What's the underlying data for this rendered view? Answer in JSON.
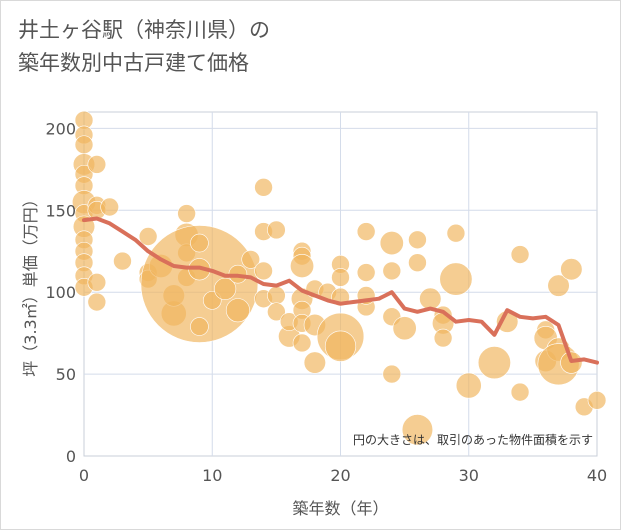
{
  "title": {
    "line1": "井土ヶ谷駅（神奈川県）の",
    "line2": "築年数別中古戸建て価格"
  },
  "chart_data": {
    "type": "scatter",
    "xlabel": "築年数（年）",
    "ylabel": "坪（3.3㎡）単価（万円）",
    "xlim": [
      0,
      40
    ],
    "ylim": [
      0,
      210
    ],
    "x_ticks": [
      "0",
      "10",
      "20",
      "30",
      "40"
    ],
    "y_ticks": [
      "0",
      "50",
      "100",
      "150",
      "200"
    ],
    "note": "円の大きさは、取引のあった物件面積を示す",
    "colors": {
      "bubble": "#f0b65e",
      "line": "#d9705a",
      "grid": "#d4dcea",
      "plot_border": "#c9cfd9"
    },
    "grid": true,
    "bubbles": [
      {
        "x": 0,
        "y": 205,
        "r": 1
      },
      {
        "x": 0,
        "y": 196,
        "r": 1
      },
      {
        "x": 0,
        "y": 190,
        "r": 1
      },
      {
        "x": 0,
        "y": 178,
        "r": 1.2
      },
      {
        "x": 0,
        "y": 172,
        "r": 1
      },
      {
        "x": 0,
        "y": 165,
        "r": 1
      },
      {
        "x": 0,
        "y": 155,
        "r": 1.3
      },
      {
        "x": 0,
        "y": 148,
        "r": 1
      },
      {
        "x": 0,
        "y": 140,
        "r": 1.2
      },
      {
        "x": 0,
        "y": 132,
        "r": 1
      },
      {
        "x": 0,
        "y": 125,
        "r": 1
      },
      {
        "x": 0,
        "y": 118,
        "r": 1
      },
      {
        "x": 0,
        "y": 110,
        "r": 1
      },
      {
        "x": 0,
        "y": 103,
        "r": 1
      },
      {
        "x": 1,
        "y": 178,
        "r": 1
      },
      {
        "x": 1,
        "y": 153,
        "r": 1
      },
      {
        "x": 1,
        "y": 150,
        "r": 1
      },
      {
        "x": 2,
        "y": 152,
        "r": 1
      },
      {
        "x": 1,
        "y": 106,
        "r": 1
      },
      {
        "x": 1,
        "y": 94,
        "r": 1
      },
      {
        "x": 3,
        "y": 119,
        "r": 1
      },
      {
        "x": 5,
        "y": 134,
        "r": 1
      },
      {
        "x": 5,
        "y": 112,
        "r": 1
      },
      {
        "x": 5,
        "y": 108,
        "r": 1
      },
      {
        "x": 6,
        "y": 116,
        "r": 1.3
      },
      {
        "x": 7,
        "y": 87,
        "r": 1.4
      },
      {
        "x": 7,
        "y": 98,
        "r": 1.2
      },
      {
        "x": 8,
        "y": 148,
        "r": 1
      },
      {
        "x": 8,
        "y": 135,
        "r": 1.3
      },
      {
        "x": 8,
        "y": 124,
        "r": 1
      },
      {
        "x": 8,
        "y": 109,
        "r": 1
      },
      {
        "x": 9,
        "y": 105,
        "r": 6.5
      },
      {
        "x": 9,
        "y": 130,
        "r": 1
      },
      {
        "x": 9,
        "y": 114,
        "r": 1.2
      },
      {
        "x": 9,
        "y": 79,
        "r": 1
      },
      {
        "x": 10,
        "y": 95,
        "r": 1
      },
      {
        "x": 11,
        "y": 102,
        "r": 1.2
      },
      {
        "x": 12,
        "y": 89,
        "r": 1.3
      },
      {
        "x": 12,
        "y": 111,
        "r": 1
      },
      {
        "x": 13,
        "y": 120,
        "r": 1
      },
      {
        "x": 14,
        "y": 164,
        "r": 1
      },
      {
        "x": 14,
        "y": 137,
        "r": 1
      },
      {
        "x": 14,
        "y": 113,
        "r": 1
      },
      {
        "x": 14,
        "y": 96,
        "r": 1
      },
      {
        "x": 15,
        "y": 138,
        "r": 1
      },
      {
        "x": 15,
        "y": 98,
        "r": 1
      },
      {
        "x": 15,
        "y": 88,
        "r": 1
      },
      {
        "x": 16,
        "y": 73,
        "r": 1.2
      },
      {
        "x": 16,
        "y": 82,
        "r": 1
      },
      {
        "x": 17,
        "y": 125,
        "r": 1
      },
      {
        "x": 17,
        "y": 122,
        "r": 1
      },
      {
        "x": 17,
        "y": 116,
        "r": 1.3
      },
      {
        "x": 17,
        "y": 96,
        "r": 1.2
      },
      {
        "x": 17,
        "y": 89,
        "r": 1
      },
      {
        "x": 17,
        "y": 81,
        "r": 1
      },
      {
        "x": 17,
        "y": 69,
        "r": 1
      },
      {
        "x": 18,
        "y": 102,
        "r": 1
      },
      {
        "x": 18,
        "y": 80,
        "r": 1.2
      },
      {
        "x": 18,
        "y": 57,
        "r": 1.2
      },
      {
        "x": 19,
        "y": 100,
        "r": 1
      },
      {
        "x": 20,
        "y": 117,
        "r": 1
      },
      {
        "x": 20,
        "y": 109,
        "r": 1
      },
      {
        "x": 20,
        "y": 97,
        "r": 1
      },
      {
        "x": 20,
        "y": 73,
        "r": 2.6
      },
      {
        "x": 20,
        "y": 67,
        "r": 1.7
      },
      {
        "x": 22,
        "y": 112,
        "r": 1
      },
      {
        "x": 22,
        "y": 91,
        "r": 1
      },
      {
        "x": 22,
        "y": 137,
        "r": 1
      },
      {
        "x": 22,
        "y": 98,
        "r": 1
      },
      {
        "x": 24,
        "y": 130,
        "r": 1.3
      },
      {
        "x": 24,
        "y": 113,
        "r": 1
      },
      {
        "x": 24,
        "y": 85,
        "r": 1
      },
      {
        "x": 24,
        "y": 50,
        "r": 1
      },
      {
        "x": 25,
        "y": 78,
        "r": 1.3
      },
      {
        "x": 26,
        "y": 132,
        "r": 1
      },
      {
        "x": 26,
        "y": 118,
        "r": 1
      },
      {
        "x": 26,
        "y": 16,
        "r": 1.7
      },
      {
        "x": 27,
        "y": 96,
        "r": 1.2
      },
      {
        "x": 28,
        "y": 86,
        "r": 1
      },
      {
        "x": 28,
        "y": 81,
        "r": 1.2
      },
      {
        "x": 28,
        "y": 72,
        "r": 1
      },
      {
        "x": 29,
        "y": 136,
        "r": 1
      },
      {
        "x": 29,
        "y": 108,
        "r": 1.8
      },
      {
        "x": 30,
        "y": 43,
        "r": 1.4
      },
      {
        "x": 32,
        "y": 57,
        "r": 1.8
      },
      {
        "x": 33,
        "y": 82,
        "r": 1.2
      },
      {
        "x": 34,
        "y": 123,
        "r": 1
      },
      {
        "x": 34,
        "y": 39,
        "r": 1
      },
      {
        "x": 36,
        "y": 77,
        "r": 1
      },
      {
        "x": 36,
        "y": 72,
        "r": 1.3
      },
      {
        "x": 36,
        "y": 58,
        "r": 1.2
      },
      {
        "x": 37,
        "y": 104,
        "r": 1.2
      },
      {
        "x": 37,
        "y": 65,
        "r": 1.3
      },
      {
        "x": 37,
        "y": 56,
        "r": 2.3
      },
      {
        "x": 38,
        "y": 114,
        "r": 1.2
      },
      {
        "x": 38,
        "y": 57,
        "r": 1.2
      },
      {
        "x": 39,
        "y": 30,
        "r": 1
      },
      {
        "x": 40,
        "y": 34,
        "r": 1
      }
    ],
    "series": [
      {
        "x": [
          0,
          1,
          2,
          3,
          4,
          5,
          6,
          7,
          8,
          9,
          10,
          11,
          12,
          13,
          14,
          15,
          16,
          17,
          18,
          19,
          20,
          21,
          22,
          23,
          24,
          25,
          26,
          27,
          28,
          29,
          30,
          31,
          32,
          33,
          34,
          35,
          36,
          37,
          38,
          39,
          40
        ],
        "y": [
          144,
          145,
          142,
          137,
          132,
          125,
          120,
          116,
          115,
          115,
          113,
          110,
          110,
          109,
          105,
          104,
          107,
          101,
          98,
          95,
          93,
          94,
          95,
          96,
          100,
          90,
          88,
          90,
          88,
          82,
          83,
          82,
          74,
          89,
          85,
          84,
          85,
          80,
          58,
          59,
          57
        ]
      }
    ]
  }
}
